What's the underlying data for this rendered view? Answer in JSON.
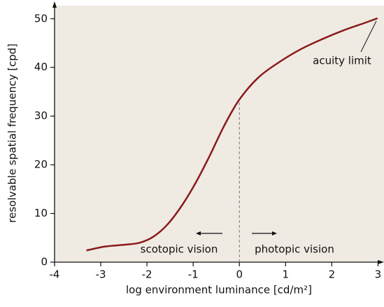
{
  "chart_data": {
    "type": "line",
    "xlabel": "log environment luminance [cd/m²]",
    "ylabel": "resolvable spatial frequency [cpd]",
    "x": [
      -3.31,
      -2.91,
      -2.46,
      -2.15,
      -1.85,
      -1.55,
      -1.24,
      -0.94,
      -0.64,
      -0.33,
      0,
      0.42,
      0.88,
      1.34,
      1.79,
      2.25,
      2.7,
      2.99
    ],
    "values": [
      2.4,
      3.2,
      3.6,
      4.0,
      5.3,
      7.8,
      11.7,
      16.4,
      21.9,
      28.0,
      33.4,
      38.0,
      41.2,
      43.8,
      45.8,
      47.6,
      49.1,
      50.1
    ],
    "color": "#8b1a1a",
    "vline": 0,
    "xlim": [
      -4,
      3.13
    ],
    "ylim": [
      0,
      52.7
    ],
    "xticks": [
      -4,
      -3,
      -2,
      -1,
      0,
      1,
      2,
      3
    ],
    "yticks": [
      0,
      10,
      20,
      30,
      40,
      50
    ],
    "annotations": [
      "scotopic vision",
      "photopic vision",
      "acuity limit"
    ]
  }
}
